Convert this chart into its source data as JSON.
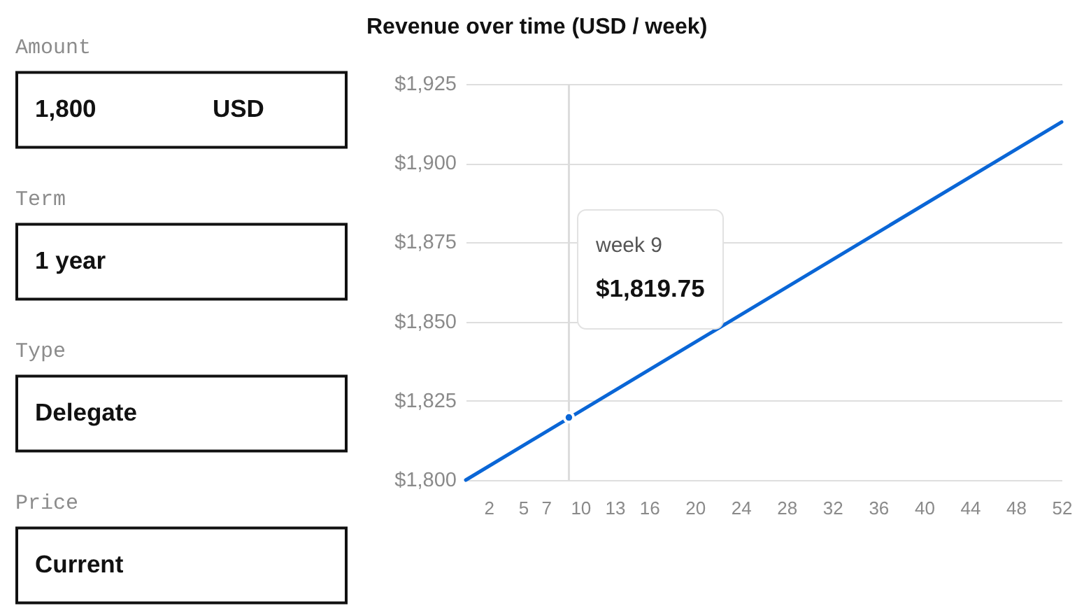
{
  "chart_data": [
    {
      "type": "other",
      "categories": [
        "Amount",
        "Term",
        "Type",
        "Price"
      ],
      "annotations": [
        "1,800",
        "USD",
        "1 year",
        "Delegate",
        "Current"
      ]
    },
    {
      "type": "line",
      "title": "Revenue over time (USD / week)",
      "xlim": [
        0,
        52
      ],
      "xticks": [
        2,
        5,
        7,
        10,
        13,
        16,
        20,
        24,
        28,
        32,
        36,
        40,
        44,
        48,
        52
      ],
      "ylim": [
        1800,
        1925
      ],
      "yticks": [
        {
          "value": 1800,
          "label": "$1,800"
        },
        {
          "value": 1825,
          "label": "$1,825"
        },
        {
          "value": 1850,
          "label": "$1,850"
        },
        {
          "value": 1875,
          "label": "$1,875"
        },
        {
          "value": 1900,
          "label": "$1,900"
        },
        {
          "value": 1925,
          "label": "$1,925"
        }
      ],
      "grid": "y",
      "series": [
        {
          "type": "line",
          "color": "#0a66d6",
          "x": [
            0,
            52
          ],
          "values": [
            1800,
            1913
          ]
        },
        {
          "type": "scatter",
          "color": "#0a66d6",
          "x": [
            9
          ],
          "values": [
            1819.75
          ]
        }
      ],
      "ref_lines": [
        {
          "axis": "x",
          "value": 9,
          "color": "#dcdcdc"
        }
      ],
      "annotations": [
        "week 9",
        "$1,819.75"
      ]
    }
  ]
}
